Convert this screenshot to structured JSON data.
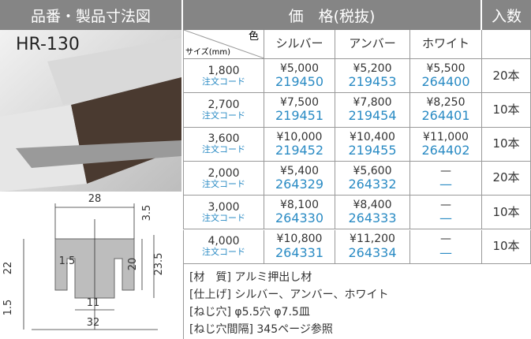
{
  "header": {
    "left_title": "品番・製品寸法図",
    "price_title": "価　格(税抜)",
    "qty_title": "入数"
  },
  "product": {
    "model": "HR-130"
  },
  "table": {
    "corner_color": "色",
    "corner_size": "サイズ(mm)",
    "columns": [
      "シルバー",
      "アンバー",
      "ホワイト"
    ],
    "rows": [
      {
        "size": "1,800",
        "code_label": "注文コード",
        "cells": [
          {
            "price": "¥5,000",
            "code": "219450"
          },
          {
            "price": "¥5,200",
            "code": "219453"
          },
          {
            "price": "¥5,500",
            "code": "264400"
          }
        ],
        "qty": "20本"
      },
      {
        "size": "2,700",
        "code_label": "注文コード",
        "cells": [
          {
            "price": "¥7,500",
            "code": "219451"
          },
          {
            "price": "¥7,800",
            "code": "219454"
          },
          {
            "price": "¥8,250",
            "code": "264401"
          }
        ],
        "qty": "10本"
      },
      {
        "size": "3,600",
        "code_label": "注文コード",
        "cells": [
          {
            "price": "¥10,000",
            "code": "219452"
          },
          {
            "price": "¥10,400",
            "code": "219455"
          },
          {
            "price": "¥11,000",
            "code": "264402"
          }
        ],
        "qty": "10本"
      },
      {
        "size": "2,000",
        "code_label": "注文コード",
        "cells": [
          {
            "price": "¥5,400",
            "code": "264329"
          },
          {
            "price": "¥5,600",
            "code": "264332"
          },
          {
            "price": "—",
            "code": "—"
          }
        ],
        "qty": "20本"
      },
      {
        "size": "3,000",
        "code_label": "注文コード",
        "cells": [
          {
            "price": "¥8,100",
            "code": "264330"
          },
          {
            "price": "¥8,400",
            "code": "264333"
          },
          {
            "price": "—",
            "code": "—"
          }
        ],
        "qty": "10本"
      },
      {
        "size": "4,000",
        "code_label": "注文コード",
        "cells": [
          {
            "price": "¥10,800",
            "code": "264331"
          },
          {
            "price": "¥11,200",
            "code": "264334"
          },
          {
            "price": "—",
            "code": "—"
          }
        ],
        "qty": "10本"
      }
    ]
  },
  "notes": [
    "[材　質] アルミ押出し材",
    "[仕上げ] シルバー、アンバー、ホワイト",
    "[ねじ穴] φ5.5穴 φ7.5皿",
    "[ねじ穴間隔] 345ページ参照"
  ],
  "drawing": {
    "dims": [
      "28",
      "3.5",
      "22",
      "1.5",
      "20",
      "23.5",
      "1.5",
      "11",
      "32"
    ]
  }
}
